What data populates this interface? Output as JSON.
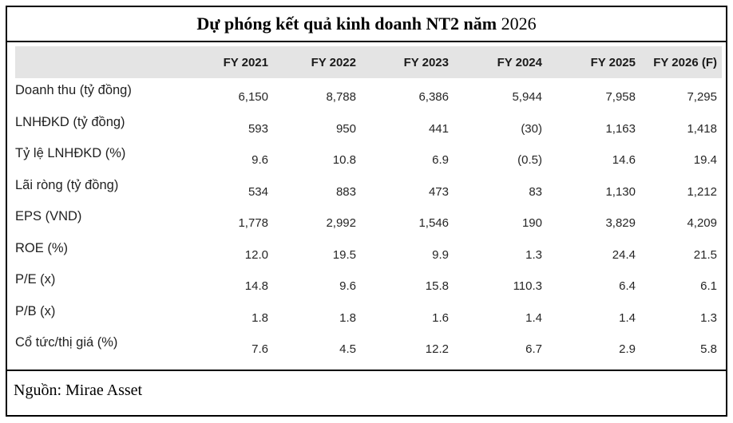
{
  "title": {
    "main": "Dự phóng kết quả kinh doanh NT2 năm ",
    "year": "2026"
  },
  "table": {
    "header": [
      "FY 2021",
      "FY 2022",
      "FY 2023",
      "FY 2024",
      "FY 2025",
      "FY 2026 (F)"
    ],
    "rows": [
      {
        "label": "Doanh thu (tỷ đồng)",
        "values": [
          "6,150",
          "8,788",
          "6,386",
          "5,944",
          "7,958",
          "7,295"
        ]
      },
      {
        "label": "LNHĐKD (tỷ đồng)",
        "values": [
          "593",
          "950",
          "441",
          "(30)",
          "1,163",
          "1,418"
        ]
      },
      {
        "label": "Tỷ lệ LNHĐKD (%)",
        "values": [
          "9.6",
          "10.8",
          "6.9",
          "(0.5)",
          "14.6",
          "19.4"
        ]
      },
      {
        "label": "Lãi ròng (tỷ đồng)",
        "values": [
          "534",
          "883",
          "473",
          "83",
          "1,130",
          "1,212"
        ]
      },
      {
        "label": "EPS (VND)",
        "values": [
          "1,778",
          "2,992",
          "1,546",
          "190",
          "3,829",
          "4,209"
        ]
      },
      {
        "label": "ROE (%)",
        "values": [
          "12.0",
          "19.5",
          "9.9",
          "1.3",
          "24.4",
          "21.5"
        ]
      },
      {
        "label": "P/E (x)",
        "values": [
          "14.8",
          "9.6",
          "15.8",
          "110.3",
          "6.4",
          "6.1"
        ]
      },
      {
        "label": "P/B (x)",
        "values": [
          "1.8",
          "1.8",
          "1.6",
          "1.4",
          "1.4",
          "1.3"
        ]
      },
      {
        "label": "Cổ tức/thị giá (%)",
        "values": [
          "7.6",
          "4.5",
          "12.2",
          "6.7",
          "2.9",
          "5.8"
        ]
      }
    ]
  },
  "footer": {
    "source": "Nguồn: Mirae Asset"
  },
  "colors": {
    "header_bg": "#e4e4e4",
    "border": "#000000"
  },
  "chart_data": {
    "type": "table",
    "title": "Dự phóng kết quả kinh doanh NT2 năm 2026",
    "columns": [
      "FY 2021",
      "FY 2022",
      "FY 2023",
      "FY 2024",
      "FY 2025",
      "FY 2026 (F)"
    ],
    "rows": [
      {
        "label": "Doanh thu (tỷ đồng)",
        "values": [
          6150,
          8788,
          6386,
          5944,
          7958,
          7295
        ]
      },
      {
        "label": "LNHĐKD (tỷ đồng)",
        "values": [
          593,
          950,
          441,
          -30,
          1163,
          1418
        ]
      },
      {
        "label": "Tỷ lệ LNHĐKD (%)",
        "values": [
          9.6,
          10.8,
          6.9,
          -0.5,
          14.6,
          19.4
        ]
      },
      {
        "label": "Lãi ròng (tỷ đồng)",
        "values": [
          534,
          883,
          473,
          83,
          1130,
          1212
        ]
      },
      {
        "label": "EPS (VND)",
        "values": [
          1778,
          2992,
          1546,
          190,
          3829,
          4209
        ]
      },
      {
        "label": "ROE (%)",
        "values": [
          12.0,
          19.5,
          9.9,
          1.3,
          24.4,
          21.5
        ]
      },
      {
        "label": "P/E (x)",
        "values": [
          14.8,
          9.6,
          15.8,
          110.3,
          6.4,
          6.1
        ]
      },
      {
        "label": "P/B (x)",
        "values": [
          1.8,
          1.8,
          1.6,
          1.4,
          1.4,
          1.3
        ]
      },
      {
        "label": "Cổ tức/thị giá (%)",
        "values": [
          7.6,
          4.5,
          12.2,
          6.7,
          2.9,
          5.8
        ]
      }
    ],
    "source": "Nguồn: Mirae Asset",
    "legend_position": "none",
    "grid": false
  }
}
